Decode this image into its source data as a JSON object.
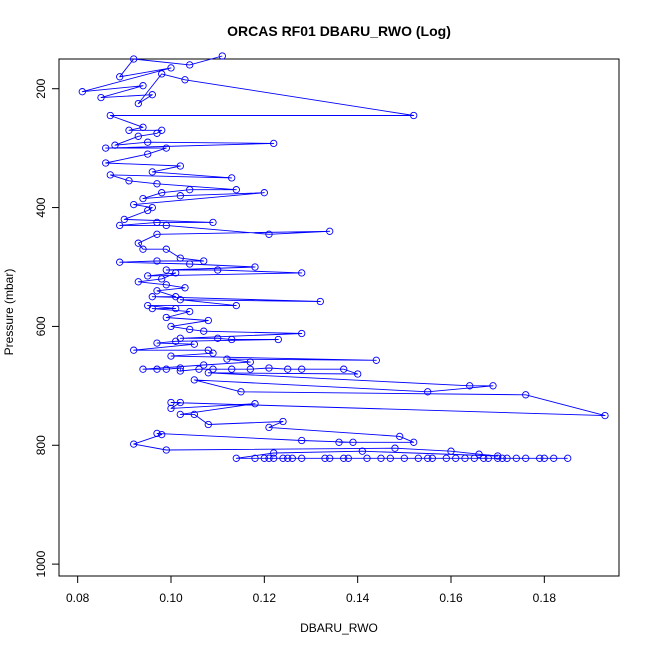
{
  "chart_data": {
    "type": "line",
    "title": "ORCAS RF01 DBARU_RWO (Log)",
    "xlabel": "DBARU_RWO",
    "ylabel": "Pressure (mbar)",
    "xlim": [
      0.076,
      0.196
    ],
    "ylim": [
      1020,
      150
    ],
    "y_reversed": true,
    "x_ticks": [
      "0.08",
      "0.10",
      "0.12",
      "0.14",
      "0.16",
      "0.18"
    ],
    "y_ticks": [
      "200",
      "400",
      "600",
      "800",
      "1000"
    ],
    "series_color": "#0000ff",
    "marker": "open-circle",
    "points": [
      [
        0.111,
        145
      ],
      [
        0.104,
        160
      ],
      [
        0.092,
        150
      ],
      [
        0.089,
        180
      ],
      [
        0.1,
        165
      ],
      [
        0.081,
        205
      ],
      [
        0.094,
        195
      ],
      [
        0.085,
        215
      ],
      [
        0.096,
        210
      ],
      [
        0.093,
        225
      ],
      [
        0.098,
        175
      ],
      [
        0.103,
        185
      ],
      [
        0.152,
        245
      ],
      [
        0.087,
        245
      ],
      [
        0.094,
        265
      ],
      [
        0.091,
        270
      ],
      [
        0.098,
        270
      ],
      [
        0.097,
        275
      ],
      [
        0.093,
        280
      ],
      [
        0.088,
        295
      ],
      [
        0.095,
        290
      ],
      [
        0.122,
        292
      ],
      [
        0.086,
        300
      ],
      [
        0.099,
        300
      ],
      [
        0.095,
        310
      ],
      [
        0.086,
        325
      ],
      [
        0.102,
        330
      ],
      [
        0.096,
        340
      ],
      [
        0.113,
        350
      ],
      [
        0.087,
        345
      ],
      [
        0.091,
        355
      ],
      [
        0.097,
        360
      ],
      [
        0.114,
        370
      ],
      [
        0.104,
        370
      ],
      [
        0.098,
        375
      ],
      [
        0.094,
        385
      ],
      [
        0.102,
        380
      ],
      [
        0.12,
        375
      ],
      [
        0.092,
        395
      ],
      [
        0.096,
        400
      ],
      [
        0.095,
        405
      ],
      [
        0.09,
        420
      ],
      [
        0.109,
        425
      ],
      [
        0.097,
        425
      ],
      [
        0.089,
        430
      ],
      [
        0.099,
        430
      ],
      [
        0.121,
        445
      ],
      [
        0.134,
        440
      ],
      [
        0.097,
        445
      ],
      [
        0.093,
        460
      ],
      [
        0.094,
        470
      ],
      [
        0.099,
        470
      ],
      [
        0.102,
        485
      ],
      [
        0.107,
        490
      ],
      [
        0.097,
        490
      ],
      [
        0.089,
        492
      ],
      [
        0.104,
        495
      ],
      [
        0.118,
        500
      ],
      [
        0.099,
        505
      ],
      [
        0.11,
        505
      ],
      [
        0.128,
        510
      ],
      [
        0.095,
        515
      ],
      [
        0.101,
        510
      ],
      [
        0.098,
        520
      ],
      [
        0.093,
        525
      ],
      [
        0.099,
        530
      ],
      [
        0.103,
        535
      ],
      [
        0.097,
        540
      ],
      [
        0.101,
        550
      ],
      [
        0.096,
        550
      ],
      [
        0.132,
        558
      ],
      [
        0.102,
        555
      ],
      [
        0.114,
        565
      ],
      [
        0.095,
        565
      ],
      [
        0.101,
        570
      ],
      [
        0.096,
        570
      ],
      [
        0.104,
        575
      ],
      [
        0.099,
        585
      ],
      [
        0.108,
        590
      ],
      [
        0.1,
        600
      ],
      [
        0.104,
        605
      ],
      [
        0.107,
        608
      ],
      [
        0.128,
        612
      ],
      [
        0.102,
        620
      ],
      [
        0.11,
        620
      ],
      [
        0.113,
        622
      ],
      [
        0.123,
        622
      ],
      [
        0.101,
        625
      ],
      [
        0.097,
        628
      ],
      [
        0.105,
        630
      ],
      [
        0.092,
        640
      ],
      [
        0.108,
        640
      ],
      [
        0.109,
        645
      ],
      [
        0.1,
        650
      ],
      [
        0.144,
        657
      ],
      [
        0.112,
        655
      ],
      [
        0.117,
        660
      ],
      [
        0.107,
        665
      ],
      [
        0.094,
        672
      ],
      [
        0.097,
        672
      ],
      [
        0.099,
        672
      ],
      [
        0.102,
        670
      ],
      [
        0.102,
        675
      ],
      [
        0.106,
        672
      ],
      [
        0.109,
        672
      ],
      [
        0.113,
        672
      ],
      [
        0.117,
        672
      ],
      [
        0.121,
        670
      ],
      [
        0.125,
        672
      ],
      [
        0.128,
        672
      ],
      [
        0.137,
        672
      ],
      [
        0.14,
        680
      ],
      [
        0.108,
        678
      ],
      [
        0.164,
        700
      ],
      [
        0.169,
        700
      ],
      [
        0.155,
        710
      ],
      [
        0.105,
        690
      ],
      [
        0.115,
        710
      ],
      [
        0.176,
        715
      ],
      [
        0.193,
        750
      ],
      [
        0.1,
        728
      ],
      [
        0.102,
        728
      ],
      [
        0.1,
        738
      ],
      [
        0.118,
        730
      ],
      [
        0.102,
        748
      ],
      [
        0.105,
        748
      ],
      [
        0.108,
        765
      ],
      [
        0.124,
        760
      ],
      [
        0.121,
        770
      ],
      [
        0.149,
        785
      ],
      [
        0.152,
        795
      ],
      [
        0.136,
        795
      ],
      [
        0.139,
        795
      ],
      [
        0.128,
        792
      ],
      [
        0.097,
        780
      ],
      [
        0.098,
        782
      ],
      [
        0.092,
        798
      ],
      [
        0.099,
        808
      ],
      [
        0.148,
        805
      ],
      [
        0.16,
        810
      ],
      [
        0.166,
        815
      ],
      [
        0.17,
        818
      ],
      [
        0.141,
        810
      ],
      [
        0.122,
        813
      ],
      [
        0.114,
        822
      ],
      [
        0.118,
        822
      ],
      [
        0.12,
        822
      ],
      [
        0.121,
        822
      ],
      [
        0.122,
        822
      ],
      [
        0.124,
        822
      ],
      [
        0.125,
        822
      ],
      [
        0.126,
        822
      ],
      [
        0.128,
        822
      ],
      [
        0.133,
        822
      ],
      [
        0.134,
        822
      ],
      [
        0.137,
        822
      ],
      [
        0.138,
        822
      ],
      [
        0.142,
        822
      ],
      [
        0.145,
        822
      ],
      [
        0.147,
        822
      ],
      [
        0.15,
        822
      ],
      [
        0.153,
        822
      ],
      [
        0.155,
        822
      ],
      [
        0.156,
        822
      ],
      [
        0.159,
        822
      ],
      [
        0.161,
        822
      ],
      [
        0.163,
        822
      ],
      [
        0.165,
        822
      ],
      [
        0.167,
        822
      ],
      [
        0.168,
        822
      ],
      [
        0.17,
        822
      ],
      [
        0.171,
        822
      ],
      [
        0.172,
        822
      ],
      [
        0.174,
        822
      ],
      [
        0.176,
        822
      ],
      [
        0.179,
        822
      ],
      [
        0.18,
        822
      ],
      [
        0.182,
        822
      ],
      [
        0.185,
        822
      ]
    ]
  }
}
